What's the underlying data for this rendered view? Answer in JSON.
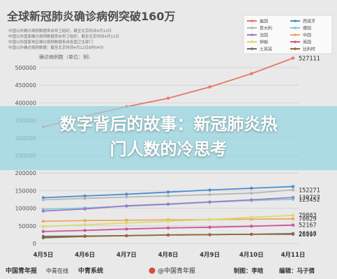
{
  "header": {
    "title": "全球新冠肺炎确诊病例突破160万",
    "notes": [
      "中国以外确诊病例数据来自世卫组织，截至北京时间4月12日",
      "中国以外国家确诊病例数据来自世卫组织，截至北京时间4月12日",
      "中国以外国家地区确诊病例数据来自各国卫生部门",
      "中国以外确诊病例数据：截至北京时间4月12日8时04分"
    ]
  },
  "overlay": {
    "line1": "数字背后的故事：新冠肺炎热",
    "line2": "门人数的冷思考"
  },
  "footer": {
    "logo_left_1": "中国青年报",
    "logo_left_2": "中青在线",
    "logo_left_3": "中青系统",
    "weibo": "@中国青年报",
    "credit_make": "制图：李晗",
    "credit_edit": "编辑：马子倩"
  },
  "colors": {
    "background": "#e9e9e9",
    "title": "#4e4e4e",
    "overlay": "#96d6e0",
    "grid": "#cfcfcf"
  },
  "chart_data": {
    "type": "line",
    "title": "全球新冠肺炎确诊病例突破160万",
    "ylabel": "确诊病例数（单位：例）",
    "xlabel": "",
    "categories": [
      "4月5日",
      "4月6日",
      "4月7日",
      "4月8日",
      "4月9日",
      "4月10日",
      "4月11日"
    ],
    "ylim": [
      0,
      500000
    ],
    "yticks": [
      "0",
      "50000",
      "100000",
      "150000",
      "200000",
      "250000",
      "300000",
      "350000",
      "400000",
      "450000",
      "500000"
    ],
    "grid": true,
    "legend_position": "top-right",
    "series": [
      {
        "name": "美国",
        "color": "#e8766b",
        "values": [
          331000,
          362000,
          389000,
          413000,
          445000,
          483000,
          527111
        ],
        "end_label": "527111"
      },
      {
        "name": "西班牙",
        "color": "#4a8fcc",
        "values": [
          130000,
          135000,
          140000,
          146000,
          152000,
          157000,
          161852
        ],
        "end_label": ""
      },
      {
        "name": "意大利",
        "color": "#b7b7b7",
        "values": [
          124000,
          128000,
          132000,
          135000,
          139000,
          143000,
          152271
        ],
        "end_label": "152271"
      },
      {
        "name": "德国",
        "color": "#84c9de",
        "values": [
          97000,
          101000,
          106000,
          111000,
          117000,
          122000,
          125452
        ],
        "end_label": "125452"
      },
      {
        "name": "法国",
        "color": "#9b7ec4",
        "values": [
          92000,
          98000,
          107000,
          112000,
          118000,
          124000,
          130727
        ],
        "end_label": "130727"
      },
      {
        "name": "中国",
        "color": "#f0a760",
        "values": [
          63000,
          65000,
          66000,
          67000,
          68000,
          69000,
          70029
        ],
        "end_label": "70029"
      },
      {
        "name": "伊朗",
        "color": "#d6dc72",
        "values": [
          48000,
          53000,
          58000,
          63000,
          68000,
          74000,
          79883
        ],
        "end_label": "79883"
      },
      {
        "name": "英国",
        "color": "#c8569b",
        "values": [
          34000,
          37000,
          41000,
          44000,
          46000,
          49000,
          52167
        ],
        "end_label": "52167"
      },
      {
        "name": "土耳其",
        "color": "#6b6b6b",
        "values": [
          20000,
          21000,
          22000,
          24000,
          25000,
          26000,
          28018
        ],
        "end_label": "28018"
      },
      {
        "name": "比利时",
        "color": "#8c6a3e",
        "values": [
          16000,
          20000,
          22000,
          24000,
          25000,
          26000,
          26107
        ],
        "end_label": "26107"
      }
    ]
  }
}
